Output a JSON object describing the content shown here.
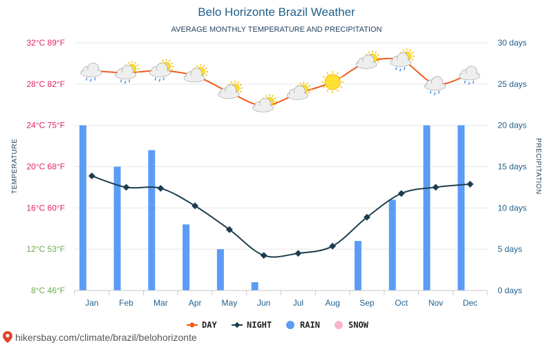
{
  "chart_data": {
    "type": "line",
    "title": "Belo Horizonte Brazil Weather",
    "subtitle": "AVERAGE MONTHLY TEMPERATURE AND PRECIPITATION",
    "ylabel": "TEMPERATURE",
    "y2label": "PRECIPITATION",
    "categories": [
      "Jan",
      "Feb",
      "Mar",
      "Apr",
      "May",
      "Jun",
      "Jul",
      "Aug",
      "Sep",
      "Oct",
      "Nov",
      "Dec"
    ],
    "ylim": [
      8,
      32
    ],
    "y2lim": [
      0,
      30
    ],
    "y_ticks": [
      {
        "value": 32,
        "label": "32°C 89°F",
        "color": "#e0245e"
      },
      {
        "value": 28,
        "label": "28°C 82°F",
        "color": "#e0245e"
      },
      {
        "value": 24,
        "label": "24°C 75°F",
        "color": "#e0245e"
      },
      {
        "value": 20,
        "label": "20°C 68°F",
        "color": "#e0245e"
      },
      {
        "value": 16,
        "label": "16°C 60°F",
        "color": "#e0245e"
      },
      {
        "value": 12,
        "label": "12°C 53°F",
        "color": "#6aa84f"
      },
      {
        "value": 8,
        "label": "8°C 46°F",
        "color": "#6aa84f"
      }
    ],
    "y2_ticks": [
      {
        "value": 30,
        "label": "30 days"
      },
      {
        "value": 25,
        "label": "25 days"
      },
      {
        "value": 20,
        "label": "20 days"
      },
      {
        "value": 15,
        "label": "15 days"
      },
      {
        "value": 10,
        "label": "10 days"
      },
      {
        "value": 5,
        "label": "5 days"
      },
      {
        "value": 0,
        "label": "0 days"
      }
    ],
    "grid": true,
    "legend_position": "bottom",
    "legend": [
      {
        "label": "DAY",
        "color": "#f05a1a",
        "symbol": "line-dot"
      },
      {
        "label": "NIGHT",
        "color": "#1c3d4f",
        "symbol": "line-diamond"
      },
      {
        "label": "RAIN",
        "color": "#5b9cf5",
        "symbol": "dot"
      },
      {
        "label": "SNOW",
        "color": "#f7b6c8",
        "symbol": "dot"
      }
    ],
    "series": [
      {
        "name": "DAY",
        "type": "line",
        "color": "#f05a1a",
        "values": [
          29.3,
          29.1,
          29.3,
          28.8,
          27.2,
          25.9,
          27.1,
          28.2,
          30.1,
          30.3,
          28.0,
          29.0
        ],
        "icons": [
          "cloud-rain",
          "cloud-sun-rain",
          "cloud-sun-rain",
          "cloud-sun",
          "cloud-sun",
          "cloud-sun",
          "cloud-sun",
          "sun",
          "cloud-sun",
          "cloud-sun-rain",
          "cloud-rain",
          "cloud-rain"
        ]
      },
      {
        "name": "NIGHT",
        "type": "line",
        "color": "#1c3d4f",
        "values": [
          19.1,
          18.0,
          17.9,
          16.2,
          13.9,
          11.4,
          11.6,
          12.3,
          15.1,
          17.4,
          18.0,
          18.3
        ]
      },
      {
        "name": "RAIN",
        "type": "bar",
        "axis": "right",
        "color": "#5b9cf5",
        "values": [
          20,
          15,
          17,
          8,
          5,
          1,
          0,
          0,
          6,
          11,
          20,
          20
        ]
      }
    ],
    "colors": {
      "day": "#f05a1a",
      "night": "#1c3d4f",
      "rain": "#5b9cf5",
      "snow": "#f7b6c8",
      "grid": "#e6e6e6"
    }
  },
  "footer": {
    "source": "hikersbay.com/climate/brazil/belohorizonte",
    "icon": "location-pin-icon"
  }
}
